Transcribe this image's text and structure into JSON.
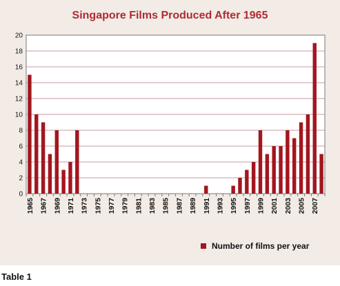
{
  "chart_data": {
    "type": "bar",
    "title": "Singapore Films Produced After 1965",
    "categories": [
      "1965",
      "1966",
      "1967",
      "1968",
      "1969",
      "1970",
      "1971",
      "1972",
      "1973",
      "1974",
      "1975",
      "1976",
      "1977",
      "1978",
      "1979",
      "1980",
      "1981",
      "1982",
      "1983",
      "1984",
      "1985",
      "1986",
      "1987",
      "1988",
      "1989",
      "1990",
      "1991",
      "1992",
      "1993",
      "1994",
      "1995",
      "1996",
      "1997",
      "1998",
      "1999",
      "2000",
      "2001",
      "2002",
      "2003",
      "2004",
      "2005",
      "2006",
      "2007",
      "2008"
    ],
    "tick_labels": [
      "1965",
      "1967",
      "1969",
      "1971",
      "1973",
      "1975",
      "1977",
      "1979",
      "1981",
      "1983",
      "1985",
      "1987",
      "1989",
      "1991",
      "1993",
      "1995",
      "1997",
      "1999",
      "2001",
      "2003",
      "2005",
      "2007"
    ],
    "series": [
      {
        "name": "Number of films per year",
        "values": [
          15,
          10,
          9,
          5,
          8,
          3,
          4,
          8,
          0,
          0,
          0,
          0,
          0,
          0,
          0,
          0,
          0,
          0,
          0,
          0,
          0,
          0,
          0,
          0,
          0,
          0,
          1,
          0,
          0,
          0,
          1,
          2,
          3,
          4,
          8,
          5,
          6,
          6,
          8,
          7,
          9,
          10,
          19,
          5
        ]
      }
    ],
    "y_ticks": [
      0,
      2,
      4,
      6,
      8,
      10,
      12,
      14,
      16,
      18,
      20
    ],
    "ylim": [
      0,
      20
    ],
    "xlabel": "",
    "ylabel": "",
    "grid": true,
    "legend_position": "bottom-right",
    "colors": {
      "bar": "#a3161e",
      "title": "#b02a33",
      "grid": "#c89aa0",
      "background": "#f2ebe6"
    }
  },
  "caption": "Table 1"
}
